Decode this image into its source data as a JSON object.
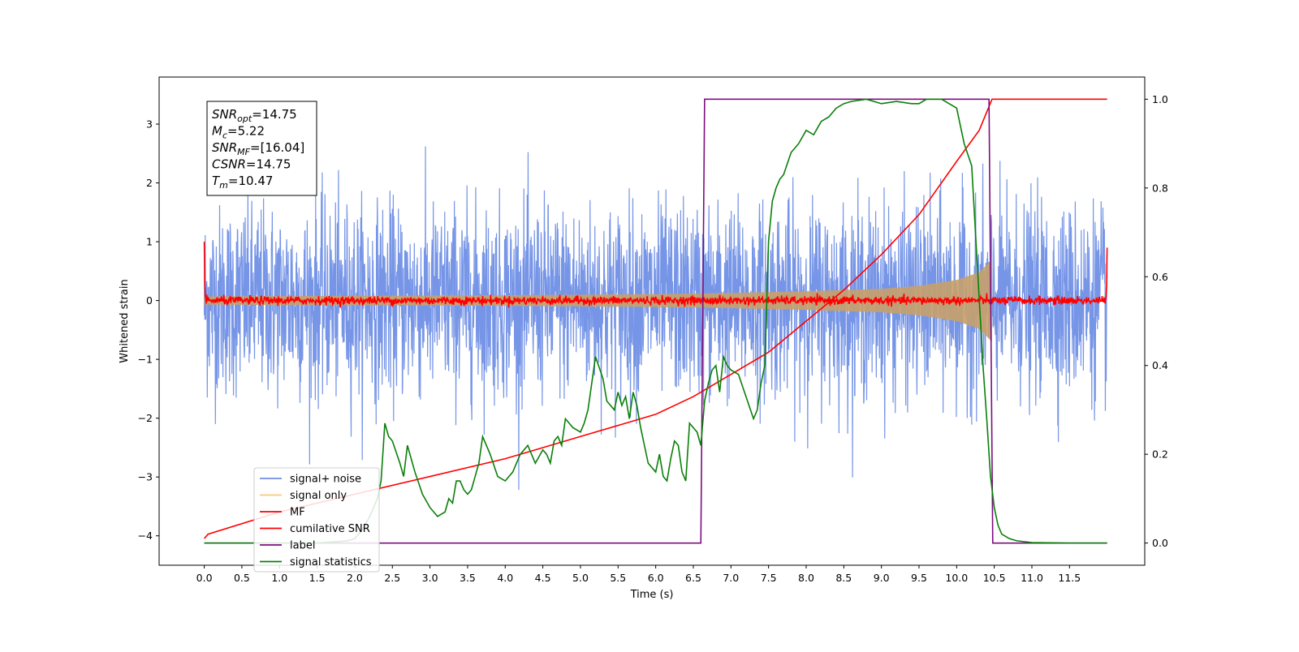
{
  "chart_data": {
    "type": "line",
    "xlabel": "Time (s)",
    "ylabel": "Whitened strain",
    "xlim": [
      -0.6,
      12.5
    ],
    "ylim_left": [
      -4.5,
      3.8
    ],
    "ylim_right": [
      -0.05,
      1.05
    ],
    "grid": false,
    "x_ticks": [
      "0.0",
      "0.5",
      "1.0",
      "1.5",
      "2.0",
      "2.5",
      "3.0",
      "3.5",
      "4.0",
      "4.5",
      "5.0",
      "5.5",
      "6.0",
      "6.5",
      "7.0",
      "7.5",
      "8.0",
      "8.5",
      "9.0",
      "9.5",
      "10.0",
      "10.5",
      "11.0",
      "11.5"
    ],
    "y_ticks_left": [
      "3",
      "2",
      "1",
      "0",
      "−1",
      "−2",
      "−3",
      "−4"
    ],
    "y_ticks_right": [
      "1.0",
      "0.8",
      "0.6",
      "0.4",
      "0.2",
      "0.0"
    ],
    "legend_position": "lower-left",
    "info_box": {
      "position": "upper-left",
      "lines": [
        {
          "sym": "SNR",
          "sub": "opt",
          "val": "=14.75"
        },
        {
          "sym": "M",
          "sub": "c",
          "val": "=5.22"
        },
        {
          "sym": "SNR",
          "sub": "MF",
          "val": "=[16.04]"
        },
        {
          "sym": "CSNR",
          "sub": "",
          "val": "=14.75"
        },
        {
          "sym": "T",
          "sub": "m",
          "val": "=10.47"
        }
      ]
    },
    "series": [
      {
        "name": "signal+ noise",
        "color": "#6f8fe6",
        "axis": "left",
        "description_values": {
          "noise_std": 0.8,
          "duration_s": 12.0
        }
      },
      {
        "name": "signal only",
        "color": "#fdc77a",
        "axis": "left",
        "envelope": {
          "x": [
            0.0,
            2.0,
            4.0,
            6.0,
            7.0,
            8.0,
            9.0,
            9.5,
            10.0,
            10.3,
            10.47
          ],
          "amp": [
            0.07,
            0.08,
            0.09,
            0.11,
            0.13,
            0.16,
            0.2,
            0.25,
            0.35,
            0.48,
            0.7
          ]
        }
      },
      {
        "name": "MF",
        "color": "#ff0000",
        "axis": "left",
        "values": {
          "baseline": 0.0,
          "start": 1.0,
          "end": 0.9,
          "noise_amp": 0.05
        }
      },
      {
        "name": "cumilative SNR",
        "color": "#ff0000",
        "axis": "right",
        "x": [
          0.0,
          0.05,
          1.0,
          2.0,
          3.0,
          4.0,
          5.0,
          6.0,
          6.5,
          7.0,
          7.5,
          8.0,
          8.5,
          9.0,
          9.5,
          10.0,
          10.3,
          10.47,
          12.0
        ],
        "y": [
          0.01,
          0.02,
          0.07,
          0.11,
          0.15,
          0.19,
          0.24,
          0.29,
          0.33,
          0.38,
          0.43,
          0.5,
          0.57,
          0.65,
          0.74,
          0.86,
          0.93,
          1.0,
          1.0
        ]
      },
      {
        "name": "label",
        "color": "#7b0f7e",
        "axis": "right",
        "x": [
          0.0,
          6.6,
          6.65,
          10.43,
          10.48,
          12.0
        ],
        "y": [
          0.0,
          0.0,
          1.0,
          1.0,
          0.0,
          0.0
        ]
      },
      {
        "name": "signal statistics",
        "color": "#0a7f0a",
        "axis": "right",
        "x": [
          0.0,
          0.5,
          1.0,
          1.5,
          1.9,
          2.0,
          2.1,
          2.2,
          2.3,
          2.35,
          2.4,
          2.45,
          2.5,
          2.6,
          2.65,
          2.7,
          2.8,
          2.9,
          3.0,
          3.1,
          3.2,
          3.25,
          3.3,
          3.35,
          3.4,
          3.45,
          3.5,
          3.55,
          3.6,
          3.65,
          3.7,
          3.8,
          3.9,
          4.0,
          4.1,
          4.2,
          4.3,
          4.4,
          4.5,
          4.55,
          4.6,
          4.65,
          4.7,
          4.75,
          4.8,
          4.9,
          5.0,
          5.05,
          5.1,
          5.15,
          5.2,
          5.3,
          5.35,
          5.4,
          5.45,
          5.5,
          5.55,
          5.6,
          5.65,
          5.7,
          5.75,
          5.8,
          5.85,
          5.9,
          6.0,
          6.05,
          6.1,
          6.15,
          6.2,
          6.25,
          6.3,
          6.35,
          6.4,
          6.45,
          6.5,
          6.55,
          6.6,
          6.65,
          6.7,
          6.75,
          6.8,
          6.85,
          6.9,
          6.95,
          7.0,
          7.1,
          7.2,
          7.3,
          7.35,
          7.4,
          7.45,
          7.5,
          7.55,
          7.6,
          7.65,
          7.7,
          7.8,
          7.9,
          8.0,
          8.1,
          8.2,
          8.3,
          8.4,
          8.5,
          8.6,
          8.8,
          9.0,
          9.2,
          9.4,
          9.5,
          9.6,
          9.7,
          9.8,
          9.9,
          10.0,
          10.1,
          10.2,
          10.25,
          10.3,
          10.35,
          10.4,
          10.45,
          10.5,
          10.55,
          10.6,
          10.7,
          10.8,
          11.0,
          11.5,
          12.0
        ],
        "y": [
          0.0,
          0.0,
          0.0,
          0.0,
          0.005,
          0.01,
          0.03,
          0.06,
          0.1,
          0.14,
          0.27,
          0.24,
          0.23,
          0.18,
          0.15,
          0.22,
          0.16,
          0.11,
          0.08,
          0.06,
          0.07,
          0.1,
          0.09,
          0.14,
          0.14,
          0.12,
          0.11,
          0.12,
          0.15,
          0.18,
          0.24,
          0.2,
          0.15,
          0.14,
          0.16,
          0.2,
          0.22,
          0.18,
          0.21,
          0.2,
          0.18,
          0.23,
          0.24,
          0.22,
          0.28,
          0.26,
          0.25,
          0.27,
          0.3,
          0.36,
          0.42,
          0.37,
          0.32,
          0.31,
          0.3,
          0.34,
          0.31,
          0.33,
          0.28,
          0.34,
          0.31,
          0.26,
          0.22,
          0.18,
          0.16,
          0.2,
          0.15,
          0.14,
          0.19,
          0.23,
          0.22,
          0.16,
          0.14,
          0.27,
          0.26,
          0.25,
          0.22,
          0.32,
          0.36,
          0.39,
          0.4,
          0.34,
          0.42,
          0.4,
          0.39,
          0.38,
          0.33,
          0.28,
          0.3,
          0.36,
          0.4,
          0.68,
          0.77,
          0.8,
          0.82,
          0.83,
          0.88,
          0.9,
          0.93,
          0.92,
          0.95,
          0.96,
          0.98,
          0.99,
          0.995,
          1.0,
          0.99,
          0.995,
          0.99,
          0.99,
          1.0,
          1.0,
          1.0,
          0.99,
          0.98,
          0.9,
          0.85,
          0.7,
          0.55,
          0.4,
          0.28,
          0.15,
          0.08,
          0.04,
          0.02,
          0.01,
          0.005,
          0.001,
          0.0,
          0.0
        ]
      }
    ]
  }
}
